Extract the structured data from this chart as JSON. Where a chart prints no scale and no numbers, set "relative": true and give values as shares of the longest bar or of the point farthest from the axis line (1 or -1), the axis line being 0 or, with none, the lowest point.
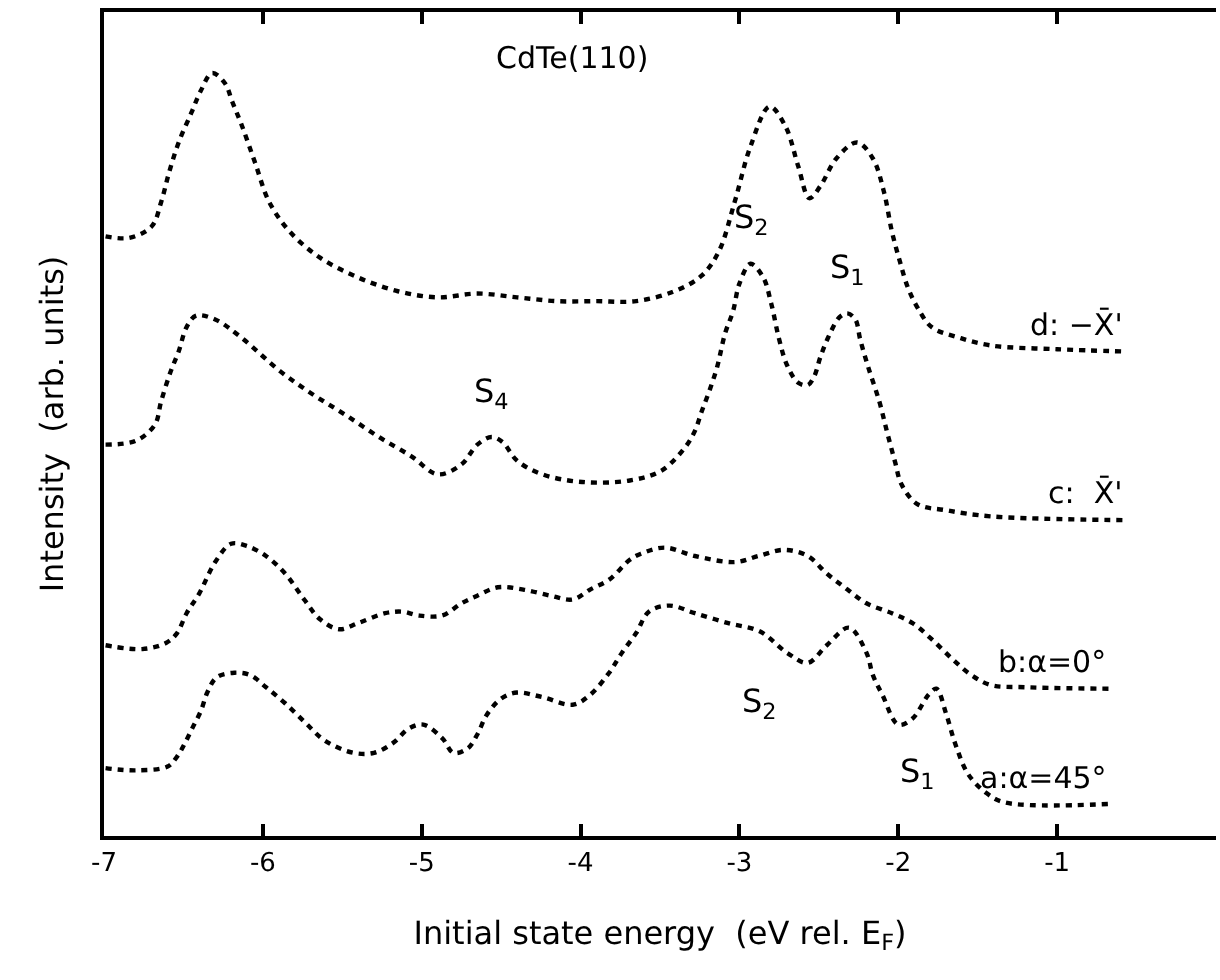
{
  "chart_data": {
    "type": "line",
    "relative": true,
    "xlabel": "Initial state energy  (eV rel. E$_{F}$)",
    "ylabel": "Intensity  (arb. units)",
    "xlim": [
      -7,
      0
    ],
    "xticks": [
      -7,
      -6,
      -5,
      -4,
      -3,
      -2,
      -1
    ],
    "legend": false,
    "line_style": "dotted",
    "marker": "none",
    "series": [
      {
        "name": "d: −X̄'",
        "color": "#000000",
        "x": [
          -6.99,
          -6.84,
          -6.7,
          -6.64,
          -6.59,
          -6.53,
          -6.45,
          -6.39,
          -6.32,
          -6.24,
          -6.19,
          -6.13,
          -6.05,
          -5.96,
          -5.83,
          -5.64,
          -5.4,
          -5.15,
          -4.9,
          -4.65,
          -4.4,
          -4.15,
          -3.9,
          -3.65,
          -3.41,
          -3.24,
          -3.13,
          -3.03,
          -2.93,
          -2.81,
          -2.71,
          -2.63,
          -2.56,
          -2.49,
          -2.39,
          -2.26,
          -2.16,
          -2.09,
          -2.04,
          -1.99,
          -1.94,
          -1.88,
          -1.79,
          -1.63,
          -1.42,
          -1.0,
          -0.57
        ],
        "values": [
          0.786,
          0.784,
          0.799,
          0.831,
          0.87,
          0.909,
          0.948,
          0.977,
          1.0,
          0.987,
          0.961,
          0.93,
          0.883,
          0.831,
          0.792,
          0.758,
          0.732,
          0.714,
          0.706,
          0.711,
          0.706,
          0.701,
          0.701,
          0.701,
          0.714,
          0.734,
          0.766,
          0.831,
          0.904,
          0.956,
          0.93,
          0.878,
          0.836,
          0.852,
          0.888,
          0.909,
          0.888,
          0.844,
          0.792,
          0.753,
          0.719,
          0.693,
          0.667,
          0.654,
          0.643,
          0.638,
          0.635
        ]
      },
      {
        "name": "c:  X̄'",
        "color": "#000000",
        "x": [
          -6.99,
          -6.8,
          -6.68,
          -6.64,
          -6.58,
          -6.53,
          -6.48,
          -6.42,
          -6.3,
          -6.14,
          -5.89,
          -5.68,
          -5.48,
          -5.27,
          -5.06,
          -4.9,
          -4.75,
          -4.65,
          -4.56,
          -4.49,
          -4.4,
          -4.24,
          -3.99,
          -3.69,
          -3.49,
          -3.34,
          -3.28,
          -3.24,
          -3.19,
          -3.14,
          -3.09,
          -3.04,
          -3.0,
          -2.93,
          -2.85,
          -2.8,
          -2.75,
          -2.7,
          -2.63,
          -2.57,
          -2.53,
          -2.49,
          -2.44,
          -2.37,
          -2.32,
          -2.27,
          -2.24,
          -2.19,
          -2.12,
          -2.07,
          -2.02,
          -1.98,
          -1.88,
          -1.7,
          -1.42,
          -0.57
        ],
        "values": [
          0.513,
          0.518,
          0.539,
          0.57,
          0.609,
          0.635,
          0.667,
          0.682,
          0.677,
          0.654,
          0.609,
          0.578,
          0.552,
          0.523,
          0.497,
          0.474,
          0.487,
          0.513,
          0.523,
          0.516,
          0.492,
          0.474,
          0.464,
          0.466,
          0.479,
          0.51,
          0.531,
          0.555,
          0.583,
          0.615,
          0.659,
          0.688,
          0.724,
          0.75,
          0.732,
          0.698,
          0.651,
          0.617,
          0.594,
          0.591,
          0.602,
          0.628,
          0.654,
          0.68,
          0.685,
          0.677,
          0.651,
          0.615,
          0.57,
          0.529,
          0.49,
          0.461,
          0.435,
          0.427,
          0.419,
          0.414
        ]
      },
      {
        "name": "b:α=0°",
        "color": "#000000",
        "x": [
          -6.99,
          -6.76,
          -6.61,
          -6.54,
          -6.48,
          -6.4,
          -6.3,
          -6.2,
          -6.1,
          -5.98,
          -5.86,
          -5.74,
          -5.64,
          -5.52,
          -5.4,
          -5.23,
          -5.12,
          -5.02,
          -4.87,
          -4.75,
          -4.65,
          -4.52,
          -4.36,
          -4.19,
          -4.05,
          -3.94,
          -3.82,
          -3.69,
          -3.62,
          -3.47,
          -3.28,
          -3.03,
          -2.88,
          -2.72,
          -2.57,
          -2.45,
          -2.32,
          -2.2,
          -2.04,
          -1.91,
          -1.79,
          -1.66,
          -1.54,
          -1.42,
          -1.2,
          -0.67
        ],
        "values": [
          0.25,
          0.245,
          0.253,
          0.266,
          0.292,
          0.318,
          0.359,
          0.383,
          0.38,
          0.367,
          0.344,
          0.31,
          0.284,
          0.271,
          0.279,
          0.292,
          0.294,
          0.289,
          0.289,
          0.305,
          0.315,
          0.326,
          0.323,
          0.315,
          0.31,
          0.323,
          0.336,
          0.362,
          0.37,
          0.378,
          0.367,
          0.359,
          0.367,
          0.375,
          0.367,
          0.344,
          0.323,
          0.305,
          0.292,
          0.279,
          0.258,
          0.232,
          0.211,
          0.198,
          0.195,
          0.193
        ]
      },
      {
        "name": "a:α=45°",
        "color": "#000000",
        "x": [
          -6.99,
          -6.8,
          -6.6,
          -6.54,
          -6.49,
          -6.44,
          -6.39,
          -6.35,
          -6.29,
          -6.18,
          -6.08,
          -5.98,
          -5.86,
          -5.73,
          -5.61,
          -5.43,
          -5.3,
          -5.18,
          -5.08,
          -4.99,
          -4.87,
          -4.8,
          -4.71,
          -4.65,
          -4.59,
          -4.5,
          -4.4,
          -4.24,
          -4.05,
          -3.94,
          -3.82,
          -3.74,
          -3.65,
          -3.57,
          -3.44,
          -3.28,
          -3.07,
          -2.87,
          -2.7,
          -2.57,
          -2.45,
          -2.31,
          -2.2,
          -2.16,
          -2.1,
          -2.0,
          -1.91,
          -1.81,
          -1.76,
          -1.7,
          -1.64,
          -1.56,
          -1.45,
          -1.33,
          -0.67
        ],
        "values": [
          0.089,
          0.086,
          0.091,
          0.104,
          0.122,
          0.143,
          0.164,
          0.188,
          0.208,
          0.214,
          0.211,
          0.195,
          0.174,
          0.148,
          0.125,
          0.109,
          0.109,
          0.122,
          0.141,
          0.146,
          0.128,
          0.109,
          0.115,
          0.133,
          0.159,
          0.18,
          0.188,
          0.182,
          0.172,
          0.185,
          0.214,
          0.24,
          0.266,
          0.294,
          0.302,
          0.292,
          0.279,
          0.268,
          0.24,
          0.227,
          0.25,
          0.273,
          0.24,
          0.211,
          0.185,
          0.146,
          0.154,
          0.185,
          0.193,
          0.161,
          0.12,
          0.081,
          0.057,
          0.044,
          0.042
        ]
      }
    ],
    "annotations": [
      "CdTe(110)",
      {
        "text": "S$_{4}$",
        "x": -4.56,
        "y": 0.523
      },
      {
        "text": "S$_{2}$",
        "x": -2.93,
        "y": 0.75
      },
      {
        "text": "S$_{1}$",
        "x": -2.32,
        "y": 0.685
      },
      {
        "text": "S$_{2}$",
        "x": -2.31,
        "y": 0.273
      },
      {
        "text": "S$_{1}$",
        "x": -1.76,
        "y": 0.193
      }
    ]
  }
}
